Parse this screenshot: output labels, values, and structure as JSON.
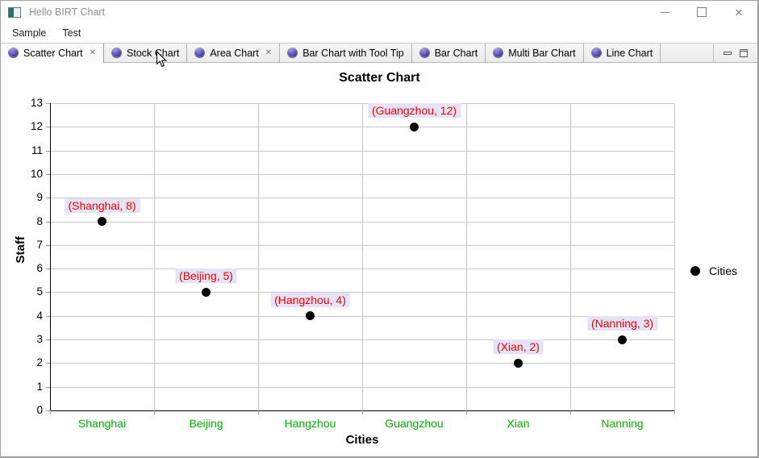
{
  "window": {
    "title": "Hello BIRT Chart"
  },
  "icons": {
    "app_icon": "window-form",
    "tab_icon": "purple-sphere-chart",
    "tab_close": "✕",
    "close_x": "✕"
  },
  "menu": {
    "items": [
      {
        "label": "Sample"
      },
      {
        "label": "Test"
      }
    ]
  },
  "tabs": {
    "items": [
      {
        "label": "Scatter Chart",
        "selected": true,
        "closable": true
      },
      {
        "label": "Stock Chart",
        "selected": false,
        "closable": false
      },
      {
        "label": "Area Chart",
        "selected": false,
        "closable": true
      },
      {
        "label": "Bar Chart with Tool Tip",
        "selected": false,
        "closable": false
      },
      {
        "label": "Bar Chart",
        "selected": false,
        "closable": false
      },
      {
        "label": "Multi Bar Chart",
        "selected": false,
        "closable": false
      },
      {
        "label": "Line Chart",
        "selected": false,
        "closable": false
      }
    ]
  },
  "chart_data": {
    "type": "scatter",
    "title": "Scatter Chart",
    "xlabel": "Cities",
    "ylabel": "Staff",
    "categories": [
      "Shanghai",
      "Beijing",
      "Hangzhou",
      "Guangzhou",
      "Xian",
      "Nanning"
    ],
    "series": [
      {
        "name": "Cities",
        "values": [
          8,
          5,
          4,
          12,
          2,
          3
        ]
      }
    ],
    "point_labels": [
      "(Shanghai, 8)",
      "(Beijing, 5)",
      "(Hangzhou, 4)",
      "(Guangzhou, 12)",
      "(Xian, 2)",
      "(Nanning, 3)"
    ],
    "ylim": [
      0,
      13
    ],
    "ytick_interval": 1,
    "grid": true,
    "legend": {
      "position": "right",
      "label": "Cities",
      "marker": "circle"
    }
  },
  "colors": {
    "point": "#000000",
    "point_label_text": "#ee0000",
    "point_label_bg": "#e6e3f8",
    "category_text": "#00b000",
    "grid": "#c9c9c9",
    "axis": "#000000",
    "tick": "#9a9a9a",
    "legend_marker": "#000000"
  }
}
